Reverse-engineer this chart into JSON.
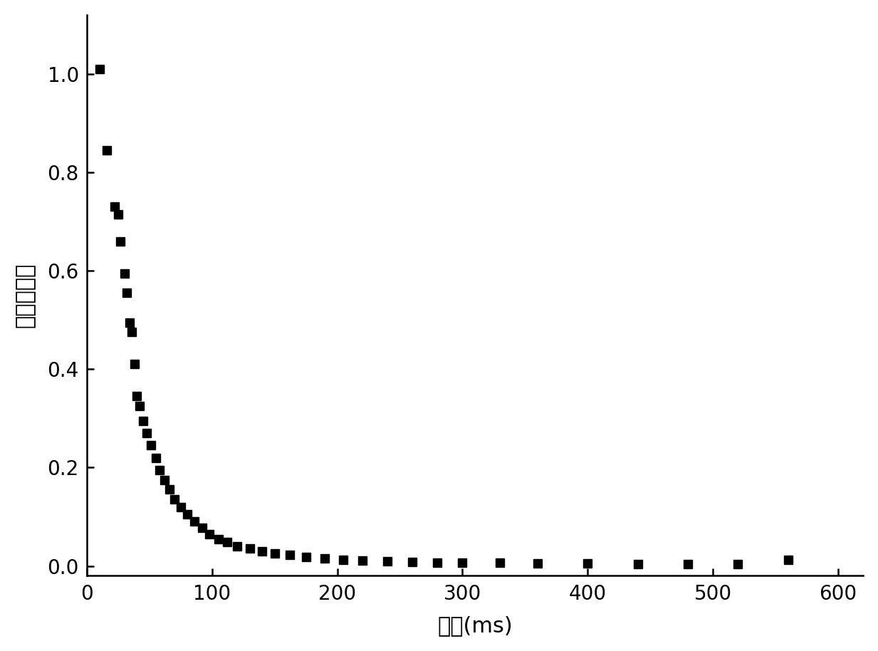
{
  "x": [
    10,
    16,
    22,
    25,
    27,
    30,
    32,
    34,
    36,
    38,
    40,
    42,
    45,
    48,
    51,
    55,
    58,
    62,
    66,
    70,
    75,
    80,
    86,
    92,
    98,
    105,
    112,
    120,
    130,
    140,
    150,
    162,
    175,
    190,
    205,
    220,
    240,
    260,
    280,
    300,
    330,
    360,
    400,
    440,
    480,
    520,
    560
  ],
  "y": [
    1.01,
    0.845,
    0.73,
    0.715,
    0.66,
    0.595,
    0.555,
    0.495,
    0.475,
    0.41,
    0.345,
    0.325,
    0.295,
    0.27,
    0.245,
    0.22,
    0.195,
    0.175,
    0.155,
    0.135,
    0.12,
    0.105,
    0.09,
    0.078,
    0.065,
    0.055,
    0.048,
    0.04,
    0.035,
    0.03,
    0.025,
    0.022,
    0.018,
    0.015,
    0.013,
    0.011,
    0.009,
    0.008,
    0.007,
    0.006,
    0.006,
    0.005,
    0.005,
    0.004,
    0.004,
    0.003,
    0.013
  ],
  "marker": "s",
  "marker_color": "#000000",
  "marker_size": 9,
  "xlabel": "时间(ms)",
  "ylabel": "归一化强度",
  "xlim": [
    0,
    620
  ],
  "ylim": [
    -0.02,
    1.12
  ],
  "xticks": [
    0,
    100,
    200,
    300,
    400,
    500,
    600
  ],
  "yticks": [
    0,
    0.2,
    0.4,
    0.6,
    0.8,
    1.0
  ],
  "xlabel_fontsize": 22,
  "ylabel_fontsize": 22,
  "tick_fontsize": 20,
  "background_color": "#ffffff",
  "spine_linewidth": 1.8
}
